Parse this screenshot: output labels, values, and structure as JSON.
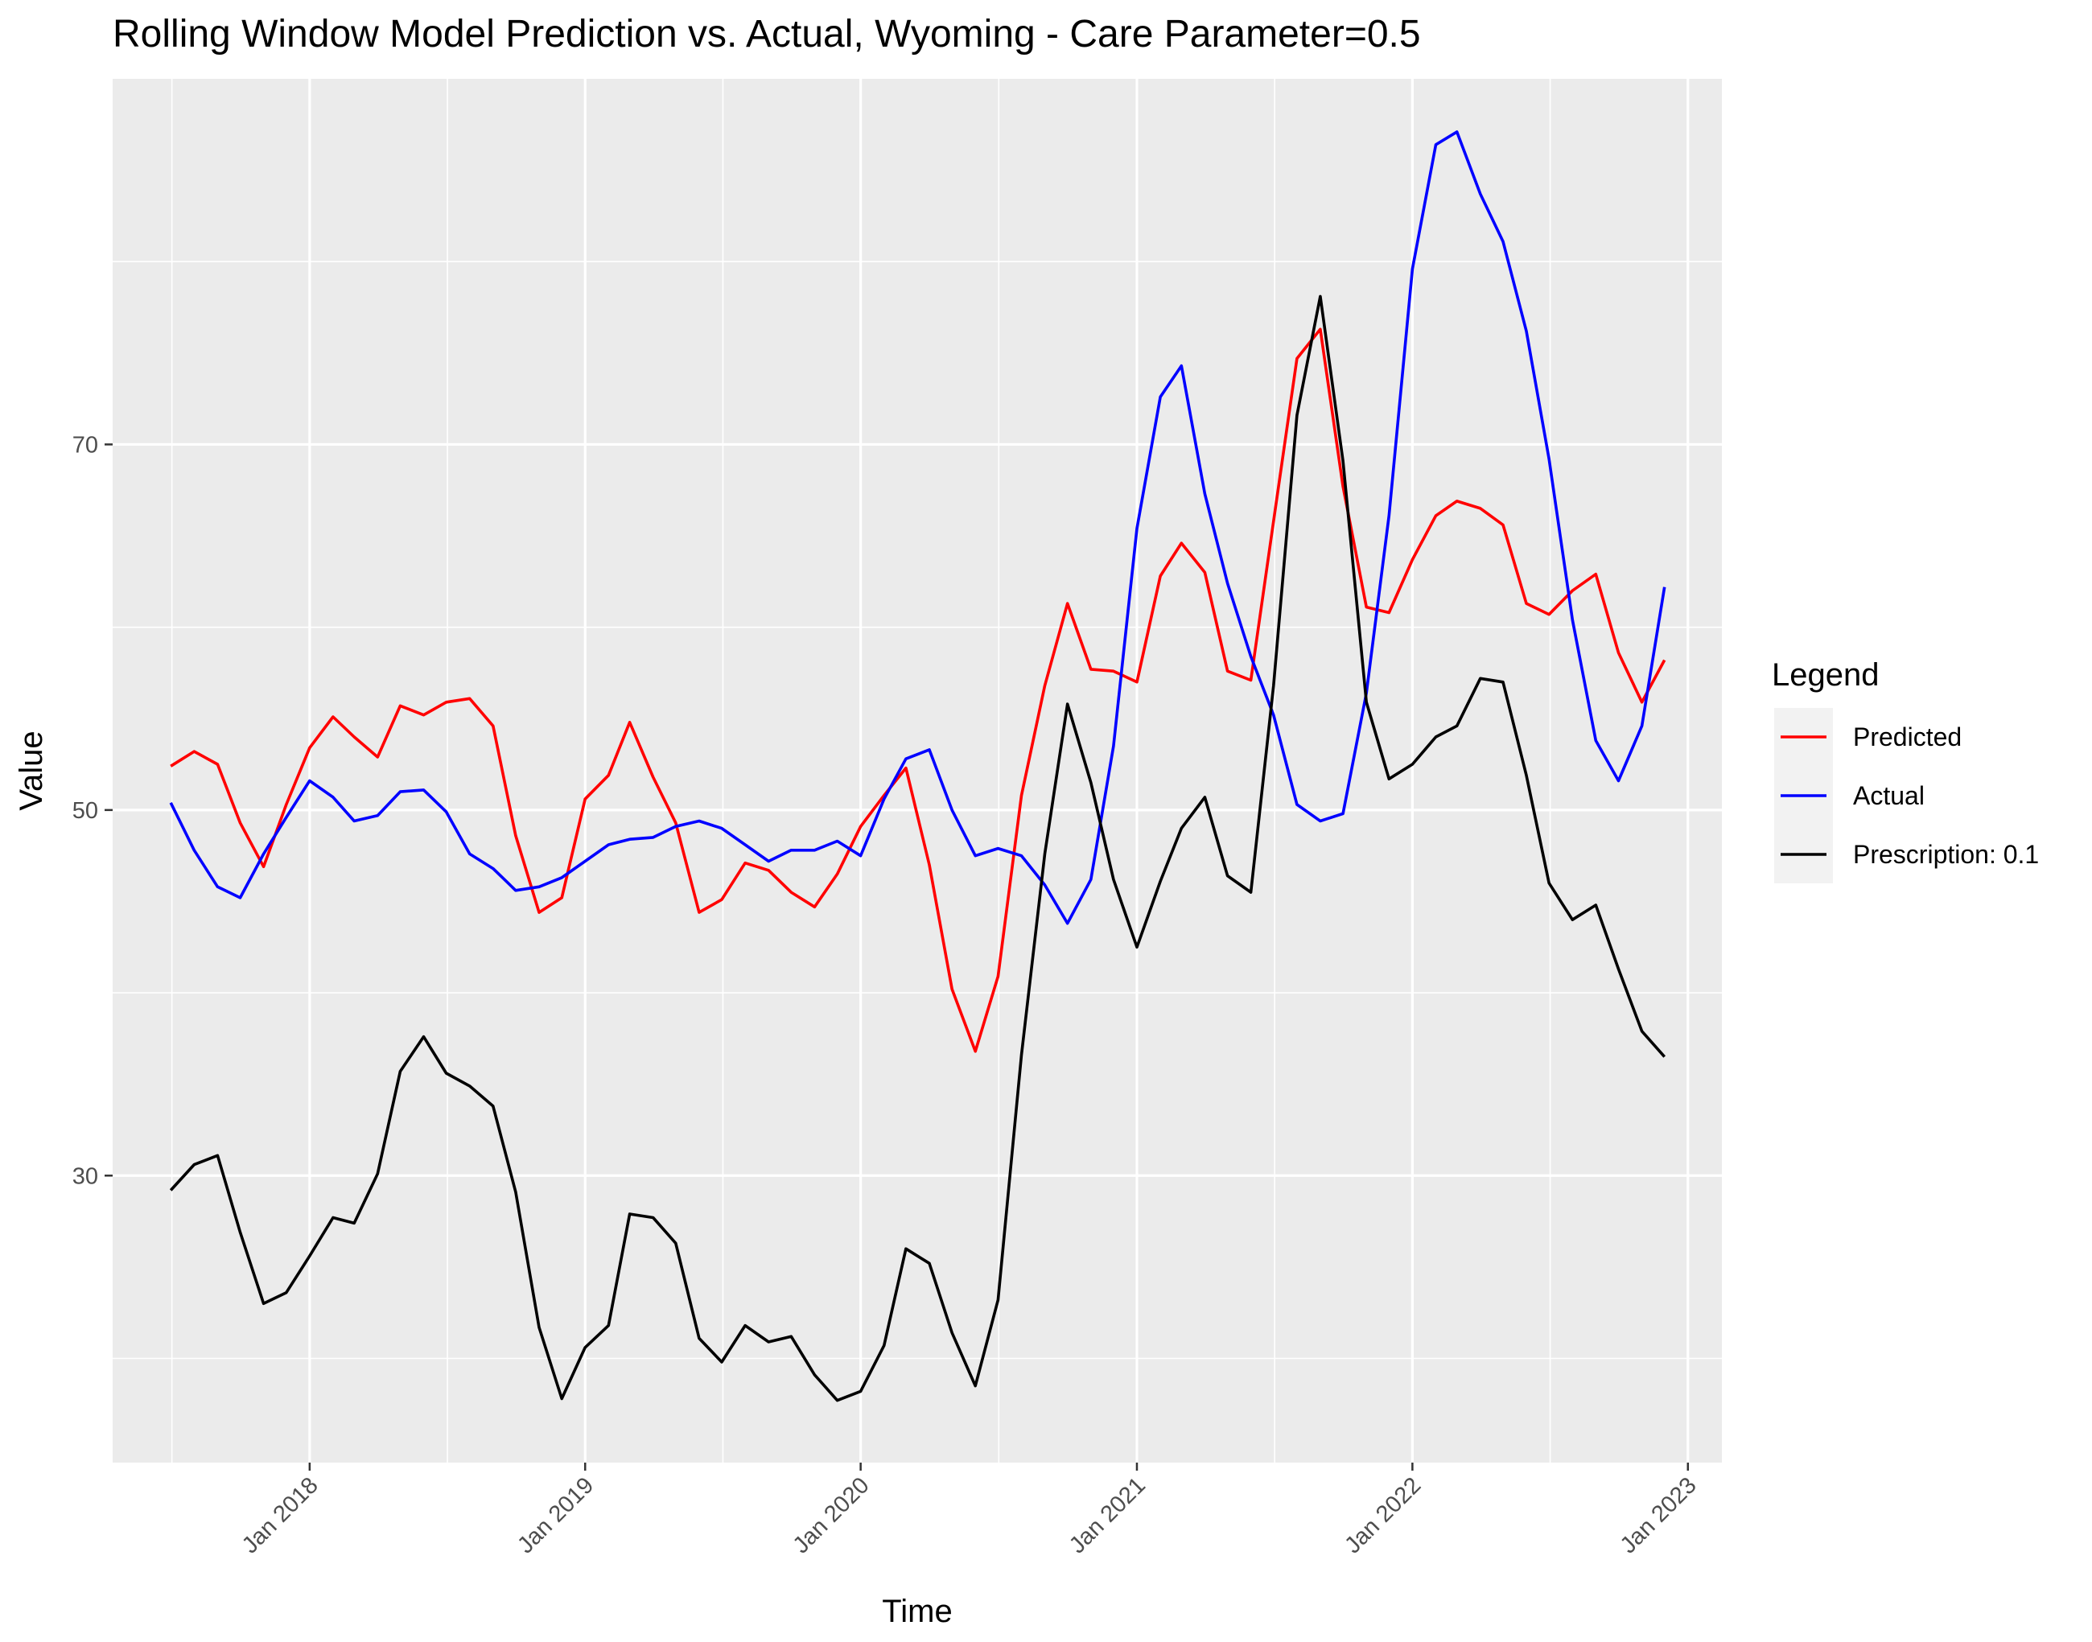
{
  "chart_data": {
    "type": "line",
    "title": "Rolling Window Model Prediction vs. Actual, Wyoming - Care Parameter=0.5",
    "xlabel": "Time",
    "ylabel": "Value",
    "x_ticks": [
      "Jan 2018",
      "Jan 2019",
      "Jan 2020",
      "Jan 2021",
      "Jan 2022",
      "Jan 2023"
    ],
    "y_ticks": [
      30,
      50,
      70
    ],
    "xlim": [
      "2017-04-15",
      "2023-02-15"
    ],
    "ylim": [
      14.3,
      90.0
    ],
    "grid": true,
    "legend": {
      "title": "Legend",
      "position": "right"
    },
    "x": [
      "2017-07-01",
      "2017-08-01",
      "2017-09-01",
      "2017-10-01",
      "2017-11-01",
      "2017-12-01",
      "2018-01-01",
      "2018-02-01",
      "2018-03-01",
      "2018-04-01",
      "2018-05-01",
      "2018-06-01",
      "2018-07-01",
      "2018-08-01",
      "2018-09-01",
      "2018-10-01",
      "2018-11-01",
      "2018-12-01",
      "2019-01-01",
      "2019-02-01",
      "2019-03-01",
      "2019-04-01",
      "2019-05-01",
      "2019-06-01",
      "2019-07-01",
      "2019-08-01",
      "2019-09-01",
      "2019-10-01",
      "2019-11-01",
      "2019-12-01",
      "2020-01-01",
      "2020-02-01",
      "2020-03-01",
      "2020-04-01",
      "2020-05-01",
      "2020-06-01",
      "2020-07-01",
      "2020-08-01",
      "2020-09-01",
      "2020-10-01",
      "2020-11-01",
      "2020-12-01",
      "2021-01-01",
      "2021-02-01",
      "2021-03-01",
      "2021-04-01",
      "2021-05-01",
      "2021-06-01",
      "2021-07-01",
      "2021-08-01",
      "2021-09-01",
      "2021-10-01",
      "2021-11-01",
      "2021-12-01",
      "2022-01-01",
      "2022-02-01",
      "2022-03-01",
      "2022-04-01",
      "2022-05-01",
      "2022-06-01",
      "2022-07-01",
      "2022-08-01",
      "2022-09-01",
      "2022-10-01",
      "2022-11-01",
      "2022-12-01"
    ],
    "series": [
      {
        "name": "Predicted",
        "color": "#ff0000",
        "values": [
          52.4,
          53.2,
          52.5,
          49.3,
          46.9,
          50.3,
          53.4,
          55.1,
          54.0,
          52.9,
          55.7,
          55.2,
          55.9,
          56.1,
          54.6,
          48.6,
          44.4,
          45.2,
          50.6,
          51.9,
          54.8,
          51.8,
          49.3,
          44.4,
          45.1,
          47.1,
          46.7,
          45.5,
          44.7,
          46.5,
          49.1,
          50.8,
          52.3,
          47.0,
          40.2,
          36.8,
          40.9,
          50.8,
          56.8,
          61.3,
          57.7,
          57.6,
          57.0,
          62.8,
          64.6,
          63.0,
          57.6,
          57.1,
          65.8,
          74.7,
          76.3,
          67.7,
          61.1,
          60.8,
          63.7,
          66.1,
          66.9,
          66.5,
          65.6,
          61.3,
          60.7,
          62.0,
          62.9,
          58.6,
          55.9,
          58.2
        ]
      },
      {
        "name": "Actual",
        "color": "#0000ff",
        "values": [
          50.4,
          47.8,
          45.8,
          45.2,
          47.6,
          49.6,
          51.6,
          50.7,
          49.4,
          49.7,
          51.0,
          51.1,
          49.9,
          47.6,
          46.8,
          45.6,
          45.8,
          46.3,
          47.2,
          48.1,
          48.4,
          48.5,
          49.1,
          49.4,
          49.0,
          48.1,
          47.2,
          47.8,
          47.8,
          48.3,
          47.5,
          50.6,
          52.8,
          53.3,
          50.0,
          47.5,
          47.9,
          47.5,
          45.9,
          43.8,
          46.2,
          53.5,
          65.4,
          72.6,
          74.3,
          67.3,
          62.4,
          58.4,
          55.2,
          50.3,
          49.4,
          49.8,
          56.4,
          66.1,
          79.6,
          86.4,
          87.1,
          83.7,
          81.1,
          76.2,
          69.2,
          60.4,
          53.8,
          51.6,
          54.6,
          62.2
        ]
      },
      {
        "name": "Prescription: 0.1",
        "color": "#000000",
        "values": [
          29.2,
          30.6,
          31.1,
          26.9,
          23.0,
          23.6,
          25.6,
          27.7,
          27.4,
          30.1,
          35.7,
          37.6,
          35.6,
          34.9,
          33.8,
          29.1,
          21.7,
          17.8,
          20.6,
          21.8,
          27.9,
          27.7,
          26.3,
          21.1,
          19.8,
          21.8,
          20.9,
          21.2,
          19.1,
          17.7,
          18.2,
          20.7,
          26.0,
          25.2,
          21.4,
          18.5,
          23.2,
          36.6,
          47.6,
          55.8,
          51.5,
          46.2,
          42.5,
          46.1,
          49.0,
          50.7,
          46.4,
          45.5,
          56.8,
          71.6,
          78.1,
          69.1,
          55.9,
          51.7,
          52.5,
          54.0,
          54.6,
          57.2,
          57.0,
          51.9,
          46.0,
          44.0,
          44.8,
          41.3,
          37.9,
          36.5
        ]
      }
    ]
  }
}
